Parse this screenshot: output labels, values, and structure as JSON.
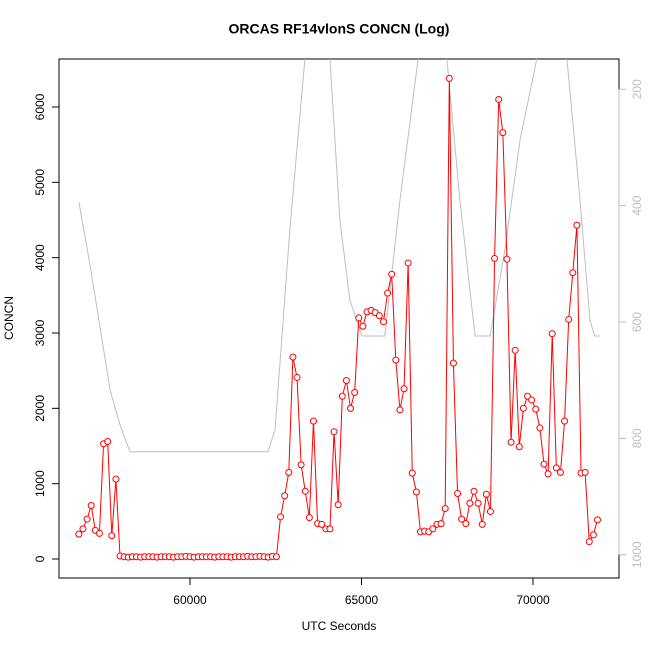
{
  "chart_data": {
    "type": "line",
    "title": "ORCAS RF14vlonS CONCN (Log)",
    "xlabel": "UTC Seconds",
    "ylabel": "CONCN",
    "x": [
      56760,
      56880,
      57000,
      57120,
      57240,
      57360,
      57480,
      57600,
      57720,
      57840,
      57960,
      58080,
      58200,
      58320,
      58440,
      58560,
      58680,
      58800,
      58920,
      59040,
      59160,
      59280,
      59400,
      59520,
      59640,
      59760,
      59880,
      60000,
      60120,
      60240,
      60360,
      60480,
      60600,
      60720,
      60840,
      60960,
      61080,
      61200,
      61320,
      61440,
      61560,
      61680,
      61800,
      61920,
      62040,
      62160,
      62280,
      62400,
      62520,
      62640,
      62760,
      62880,
      63000,
      63120,
      63240,
      63360,
      63480,
      63600,
      63720,
      63840,
      63960,
      64080,
      64200,
      64320,
      64440,
      64560,
      64680,
      64800,
      64920,
      65040,
      65160,
      65280,
      65400,
      65520,
      65640,
      65760,
      65880,
      66000,
      66120,
      66240,
      66360,
      66480,
      66600,
      66720,
      66840,
      66960,
      67080,
      67200,
      67320,
      67440,
      67560,
      67680,
      67800,
      67920,
      68040,
      68160,
      68280,
      68400,
      68520,
      68640,
      68760,
      68880,
      69000,
      69120,
      69240,
      69360,
      69480,
      69600,
      69720,
      69840,
      69960,
      70080,
      70200,
      70320,
      70440,
      70560,
      70680,
      70800,
      70920,
      71040,
      71160,
      71280,
      71400,
      71520,
      71640,
      71760,
      71880
    ],
    "series": [
      {
        "color": "#ff0000",
        "marker": "circle",
        "values": [
          330,
          400,
          530,
          710,
          380,
          340,
          1530,
          1560,
          310,
          1060,
          40,
          30,
          25,
          30,
          30,
          25,
          30,
          30,
          30,
          25,
          30,
          30,
          30,
          25,
          30,
          30,
          35,
          30,
          25,
          30,
          30,
          30,
          30,
          25,
          30,
          30,
          30,
          25,
          30,
          30,
          30,
          35,
          30,
          30,
          35,
          30,
          25,
          35,
          30,
          560,
          840,
          1150,
          2680,
          2410,
          1250,
          900,
          550,
          1830,
          470,
          460,
          400,
          400,
          1690,
          720,
          2160,
          2370,
          2000,
          2210,
          3200,
          3090,
          3280,
          3300,
          3270,
          3230,
          3150,
          3530,
          3780,
          2640,
          1980,
          2260,
          3930,
          1140,
          890,
          360,
          370,
          360,
          400,
          460,
          470,
          670,
          6380,
          2600,
          870,
          530,
          470,
          740,
          900,
          740,
          460,
          860,
          630,
          3990,
          6100,
          5660,
          3980,
          1550,
          2770,
          1490,
          2000,
          2160,
          2110,
          1990,
          1740,
          1260,
          1130,
          2990,
          1210,
          1150,
          1830,
          3180,
          3800,
          4430,
          1140,
          1150,
          230,
          320,
          520
        ]
      },
      {
        "color": "#bebebe",
        "axis": "y2",
        "x": [
          56760,
          57080,
          57380,
          57670,
          57960,
          58250,
          62270,
          62480,
          62910,
          63350,
          63640,
          64080,
          64370,
          64660,
          65010,
          65680,
          66120,
          66650,
          67050,
          67490,
          67870,
          68310,
          68750,
          69180,
          69620,
          70110,
          70550,
          70990,
          71370,
          71660,
          71800,
          71950
        ],
        "values": [
          394,
          500,
          610,
          717,
          777,
          823,
          823,
          785,
          442,
          148,
          120,
          148,
          425,
          562,
          624,
          624,
          391,
          148,
          120,
          148,
          391,
          624,
          624,
          476,
          288,
          148,
          120,
          148,
          391,
          597,
          624,
          624
        ]
      }
    ],
    "xlim": [
      56181,
      72507
    ],
    "xticks": [
      60000,
      65000,
      70000
    ],
    "ylim": [
      -252,
      6637
    ],
    "yticks": [
      0,
      1000,
      2000,
      3000,
      4000,
      5000,
      6000
    ],
    "y2lim": [
      1040,
      148
    ],
    "y2ticks": [
      200,
      400,
      600,
      800,
      1000
    ],
    "y2color": "#bebebe"
  }
}
